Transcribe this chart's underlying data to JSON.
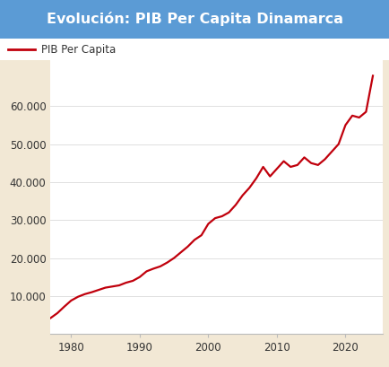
{
  "title": "Evolución: PIB Per Capita Dinamarca",
  "title_bg_color": "#5b9bd5",
  "title_text_color": "#ffffff",
  "legend_label": "PIB Per Capita",
  "line_color": "#c0000c",
  "background_color": "#ffffff",
  "outer_bg_color": "#f2e8d5",
  "years": [
    1977,
    1978,
    1979,
    1980,
    1981,
    1982,
    1983,
    1984,
    1985,
    1986,
    1987,
    1988,
    1989,
    1990,
    1991,
    1992,
    1993,
    1994,
    1995,
    1996,
    1997,
    1998,
    1999,
    2000,
    2001,
    2002,
    2003,
    2004,
    2005,
    2006,
    2007,
    2008,
    2009,
    2010,
    2011,
    2012,
    2013,
    2014,
    2015,
    2016,
    2017,
    2018,
    2019,
    2020,
    2021,
    2022,
    2023,
    2024
  ],
  "values": [
    4200,
    5500,
    7200,
    8800,
    9800,
    10500,
    11000,
    11600,
    12200,
    12500,
    12800,
    13500,
    14000,
    15000,
    16500,
    17200,
    17800,
    18800,
    20000,
    21500,
    23000,
    24800,
    26000,
    29000,
    30500,
    31000,
    32000,
    34000,
    36500,
    38500,
    41000,
    44000,
    41500,
    43500,
    45500,
    44000,
    44500,
    46500,
    45000,
    44500,
    46000,
    48000,
    50000,
    55000,
    57500,
    57000,
    58500,
    68000
  ],
  "ylim": [
    0,
    72000
  ],
  "yticks": [
    10000,
    20000,
    30000,
    40000,
    50000,
    60000
  ],
  "ytick_labels": [
    "10.000",
    "20.000",
    "30.000",
    "40.000",
    "50.000",
    "60.000"
  ],
  "xlim": [
    1977,
    2025.5
  ],
  "xticks": [
    1980,
    1990,
    2000,
    2010,
    2020
  ],
  "grid_color": "#e0e0e0",
  "line_width": 1.6
}
